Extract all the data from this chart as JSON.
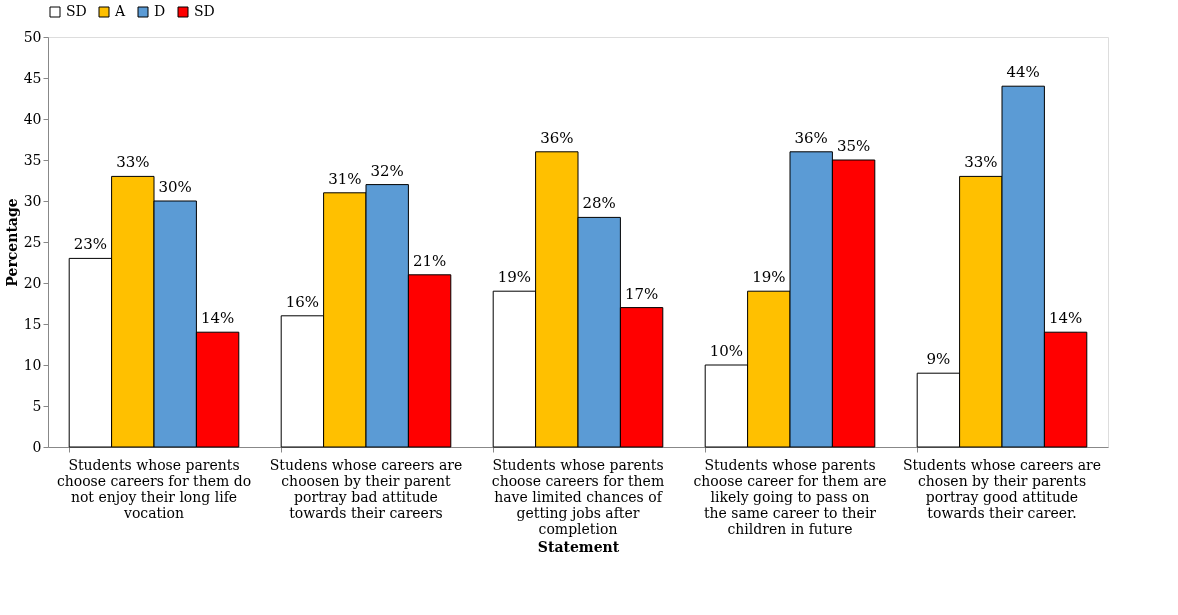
{
  "chart_data": {
    "type": "bar",
    "xlabel": "Statement",
    "ylabel": "Percentage",
    "categories": [
      "Students whose parents choose careers for them do not enjoy their long life vocation",
      "Studens whose careers are choosen by their parent portray bad attitude towards their careers",
      "Students whose parents choose careers for them have limited chances of getting jobs after completion",
      "Students whose parents choose career for them are likely going to pass on the same career to their children in future",
      "Students whose careers are chosen by their parents portray good attitude towards their career."
    ],
    "series": [
      {
        "name": "SD",
        "color": "#ffffff",
        "values": [
          23,
          16,
          19,
          10,
          9
        ],
        "value_labels": [
          "23%",
          "16%",
          "19%",
          "10%",
          "9%"
        ]
      },
      {
        "name": "A",
        "color": "#ffc000",
        "values": [
          33,
          31,
          36,
          19,
          33
        ],
        "value_labels": [
          "33%",
          "31%",
          "36%",
          "19%",
          "33%"
        ]
      },
      {
        "name": "D",
        "color": "#5b9bd5",
        "values": [
          30,
          32,
          28,
          36,
          44
        ],
        "value_labels": [
          "30%",
          "32%",
          "28%",
          "36%",
          "44%"
        ]
      },
      {
        "name": "SD",
        "color": "#ff0000",
        "values": [
          14,
          21,
          17,
          35,
          14
        ],
        "value_labels": [
          "14%",
          "21%",
          "17%",
          "35%",
          "14%"
        ]
      }
    ],
    "ylim": [
      0,
      50
    ],
    "yticks": [
      0,
      5,
      10,
      15,
      20,
      25,
      30,
      35,
      40,
      45,
      50
    ],
    "grid": false,
    "legend": "top"
  }
}
